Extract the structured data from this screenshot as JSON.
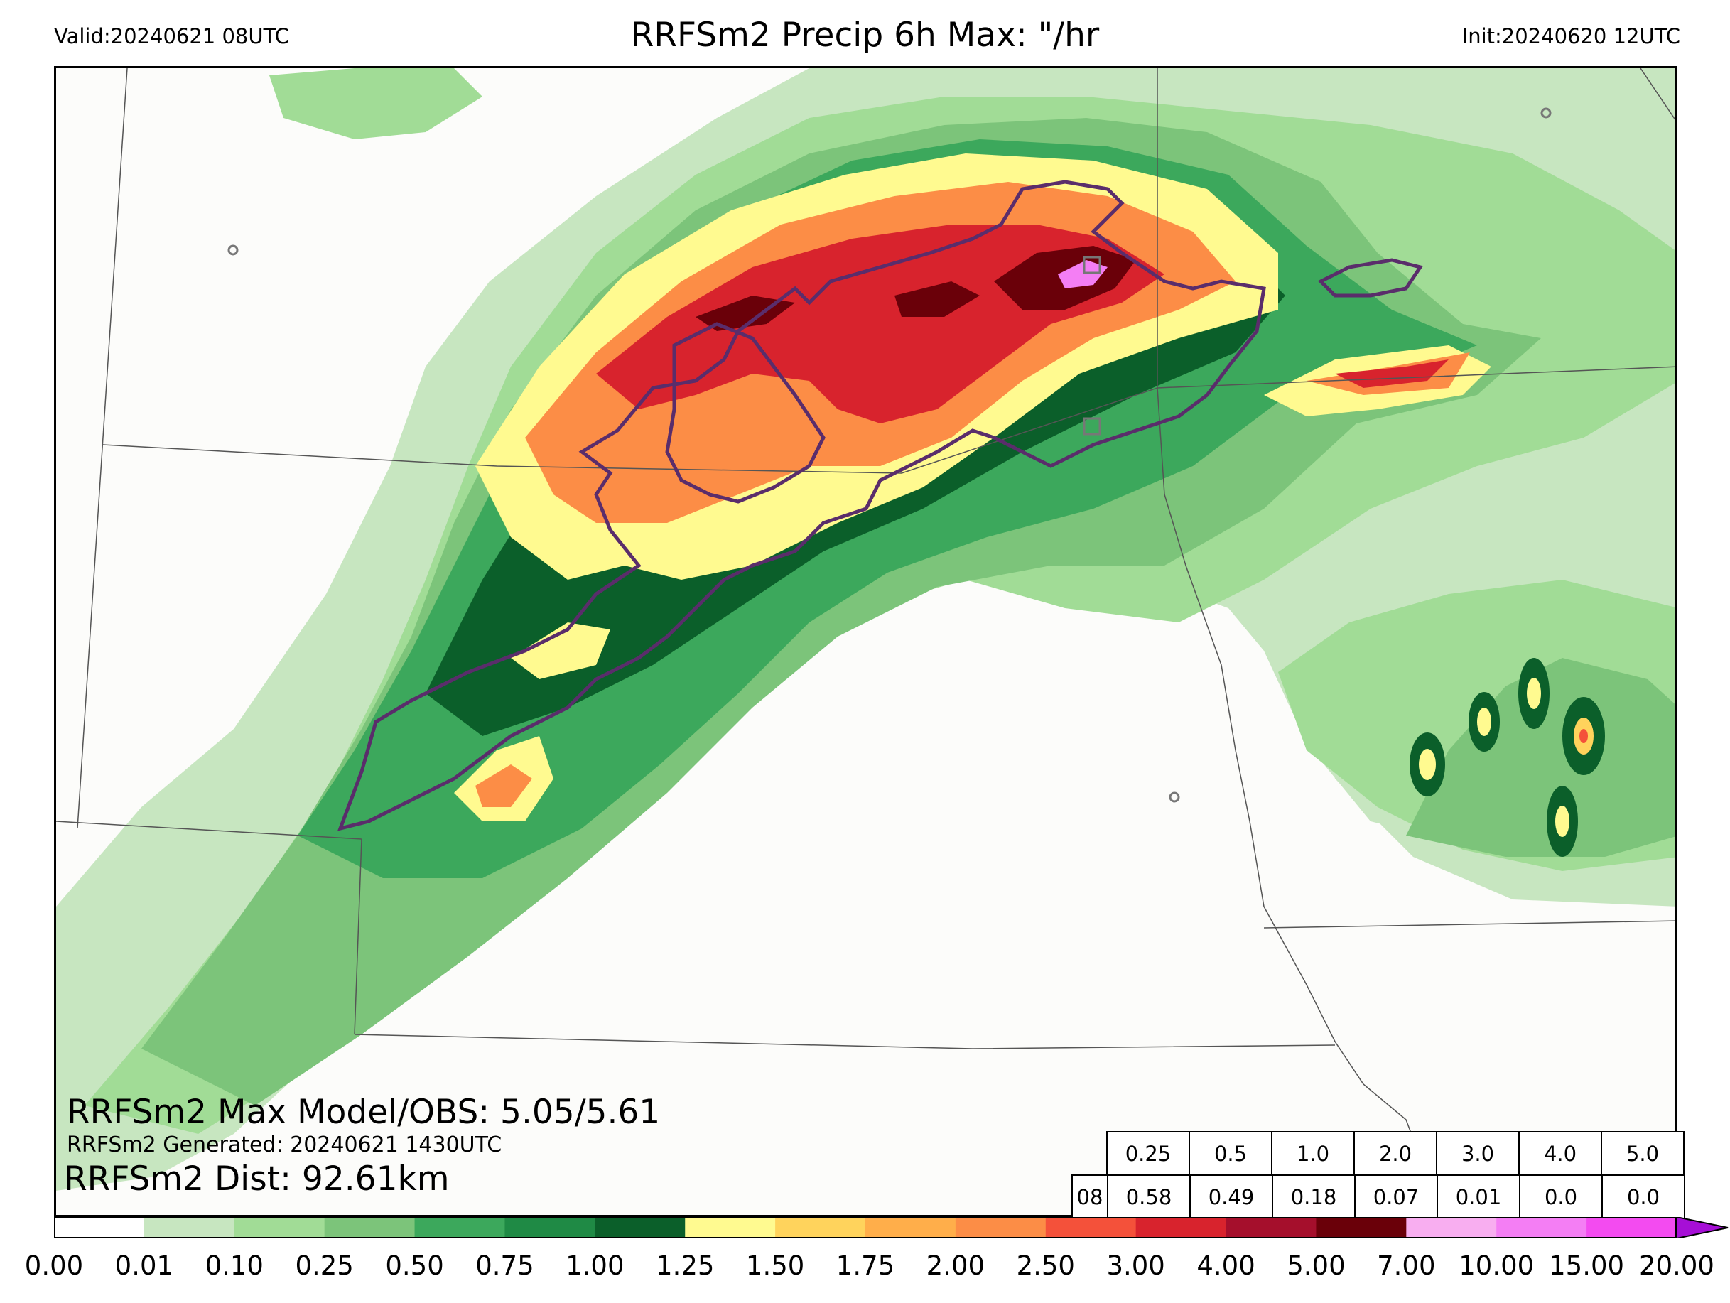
{
  "header": {
    "valid": "Valid:20240621 08UTC",
    "title": "RRFSm2 Precip 6h Max: \"/hr",
    "init": "Init:20240620 12UTC"
  },
  "annotations": {
    "max_model_obs": "RRFSm2 Max Model/OBS: 5.05/5.61",
    "generated": "RRFSm2 Generated: 20240621 1430UTC",
    "dist": "RRFSm2 Dist: 92.61km"
  },
  "stats_table": {
    "thresholds": [
      "0.25",
      "0.5",
      "1.0",
      "2.0",
      "3.0",
      "4.0",
      "5.0"
    ],
    "hour_label": "08",
    "values": [
      "0.58",
      "0.49",
      "0.18",
      "0.07",
      "0.01",
      "0.0",
      "0.0"
    ]
  },
  "colorbar": {
    "labels": [
      "0.00",
      "0.01",
      "0.10",
      "0.25",
      "0.50",
      "0.75",
      "1.00",
      "1.25",
      "1.50",
      "1.75",
      "2.00",
      "2.50",
      "3.00",
      "4.00",
      "5.00",
      "7.00",
      "10.00",
      "15.00",
      "20.00"
    ],
    "colors": [
      "#ffffff",
      "#c7e6c0",
      "#a1dc96",
      "#7cc47a",
      "#3ca85c",
      "#1f8a45",
      "#0b5f2a",
      "#fffa90",
      "#ffd35c",
      "#ffae4a",
      "#fc8d46",
      "#f4513a",
      "#d8232d",
      "#a50f2c",
      "#6a0009",
      "#f8aef0",
      "#f47ef4",
      "#f34bf0",
      "#e21cf4",
      "#a60fd6"
    ]
  },
  "map": {
    "precip_levels_colors": {
      "light": "#c7e6c0",
      "green1": "#a1dc96",
      "green2": "#7cc47a",
      "green3": "#3ca85c",
      "green4": "#0b5f2a",
      "yellow": "#fffa90",
      "orange": "#fc8d46",
      "red": "#d8232d",
      "darkred": "#6a0009",
      "pink": "#f47ef4"
    },
    "obs_contour_color": "#5a2d6b"
  }
}
